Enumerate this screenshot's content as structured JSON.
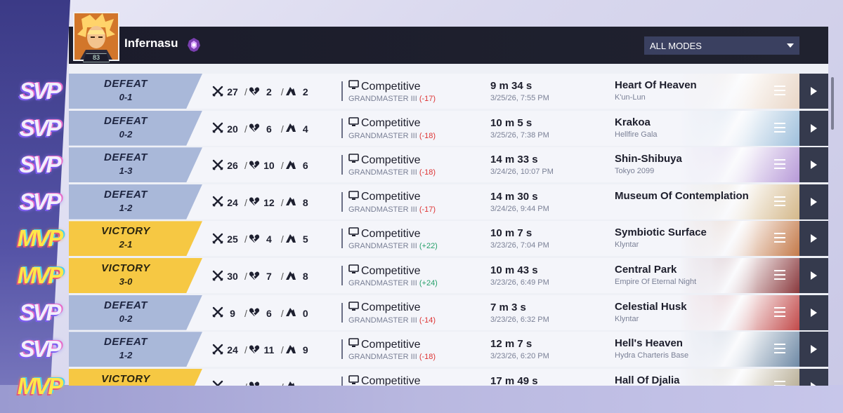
{
  "player": {
    "name": "Infernasu",
    "level": "83"
  },
  "filter": {
    "selected": "ALL MODES"
  },
  "colors": {
    "defeat": "#a9b8d9",
    "victory": "#f6c843",
    "negative": "#d33333",
    "positive": "#26a06a",
    "header": "#1b1c2b"
  },
  "matches": [
    {
      "badge": "SVP",
      "result": "DEFEAT",
      "score": "0-1",
      "kills": "27",
      "deaths": "2",
      "assists": "2",
      "mode": "Competitive",
      "rank": "GRANDMASTER III",
      "delta": "(-17)",
      "delta_sign": "neg",
      "duration": "9 m 34 s",
      "date": "3/25/26, 7:55 PM",
      "map": "Heart Of Heaven",
      "region": "K'un-Lun"
    },
    {
      "badge": "SVP",
      "result": "DEFEAT",
      "score": "0-2",
      "kills": "20",
      "deaths": "6",
      "assists": "4",
      "mode": "Competitive",
      "rank": "GRANDMASTER III",
      "delta": "(-18)",
      "delta_sign": "neg",
      "duration": "10 m 5 s",
      "date": "3/25/26, 7:38 PM",
      "map": "Krakoa",
      "region": "Hellfire Gala"
    },
    {
      "badge": "SVP",
      "result": "DEFEAT",
      "score": "1-3",
      "kills": "26",
      "deaths": "10",
      "assists": "6",
      "mode": "Competitive",
      "rank": "GRANDMASTER III",
      "delta": "(-18)",
      "delta_sign": "neg",
      "duration": "14 m 33 s",
      "date": "3/24/26, 10:07 PM",
      "map": "Shin-Shibuya",
      "region": "Tokyo 2099"
    },
    {
      "badge": "SVP",
      "result": "DEFEAT",
      "score": "1-2",
      "kills": "24",
      "deaths": "12",
      "assists": "8",
      "mode": "Competitive",
      "rank": "GRANDMASTER III",
      "delta": "(-17)",
      "delta_sign": "neg",
      "duration": "14 m 30 s",
      "date": "3/24/26, 9:44 PM",
      "map": "Museum Of Contemplation",
      "region": ""
    },
    {
      "badge": "MVP",
      "result": "VICTORY",
      "score": "2-1",
      "kills": "25",
      "deaths": "4",
      "assists": "5",
      "mode": "Competitive",
      "rank": "GRANDMASTER III",
      "delta": "(+22)",
      "delta_sign": "pos",
      "duration": "10 m 7 s",
      "date": "3/23/26, 7:04 PM",
      "map": "Symbiotic Surface",
      "region": "Klyntar"
    },
    {
      "badge": "MVP",
      "result": "VICTORY",
      "score": "3-0",
      "kills": "30",
      "deaths": "7",
      "assists": "8",
      "mode": "Competitive",
      "rank": "GRANDMASTER III",
      "delta": "(+24)",
      "delta_sign": "pos",
      "duration": "10 m 43 s",
      "date": "3/23/26, 6:49 PM",
      "map": "Central Park",
      "region": "Empire Of Eternal Night"
    },
    {
      "badge": "SVP",
      "result": "DEFEAT",
      "score": "0-2",
      "kills": "9",
      "deaths": "6",
      "assists": "0",
      "mode": "Competitive",
      "rank": "GRANDMASTER III",
      "delta": "(-14)",
      "delta_sign": "neg",
      "duration": "7 m 3 s",
      "date": "3/23/26, 6:32 PM",
      "map": "Celestial Husk",
      "region": "Klyntar"
    },
    {
      "badge": "SVP",
      "result": "DEFEAT",
      "score": "1-2",
      "kills": "24",
      "deaths": "11",
      "assists": "9",
      "mode": "Competitive",
      "rank": "GRANDMASTER III",
      "delta": "(-18)",
      "delta_sign": "neg",
      "duration": "12 m 7 s",
      "date": "3/23/26, 6:20 PM",
      "map": "Hell's Heaven",
      "region": "Hydra Charteris Base"
    },
    {
      "badge": "MVP",
      "result": "VICTORY",
      "score": "",
      "kills": "",
      "deaths": "",
      "assists": "",
      "mode": "Competitive",
      "rank": "",
      "delta": "",
      "delta_sign": "pos",
      "duration": "17 m 49 s",
      "date": "",
      "map": "Hall Of Djalia",
      "region": ""
    }
  ],
  "map_tints": [
    "#e9d6c6",
    "#9fc0dc",
    "#b79ad8",
    "#d4b88a",
    "#c47a4a",
    "#8a3a3e",
    "#c24a4a",
    "#6f8aa6",
    "#b0a58a"
  ]
}
